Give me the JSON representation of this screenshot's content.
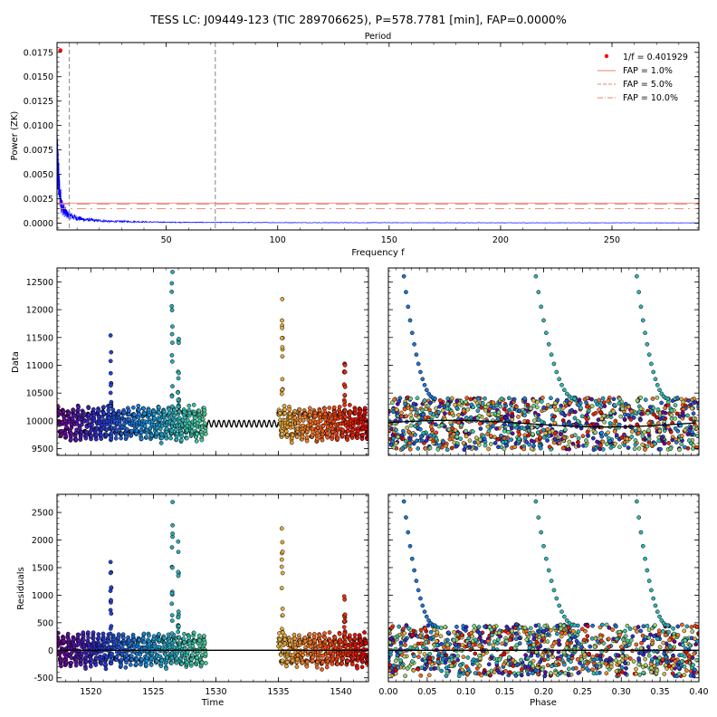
{
  "figure": {
    "title": "TESS LC: J09449-123 (TIC 289706625), P=578.7781 [min], FAP=0.0000%"
  },
  "chart_data": [
    {
      "id": "periodogram",
      "type": "line",
      "top_axis_label": "Period",
      "xlabel": "Frequency f",
      "ylabel": "Power (ZK)",
      "xlim": [
        1,
        289
      ],
      "ylim": [
        -0.0007,
        0.0185
      ],
      "xticks": [
        50,
        100,
        150,
        200,
        250
      ],
      "yticks": [
        0.0,
        0.0025,
        0.005,
        0.0075,
        0.01,
        0.0125,
        0.015,
        0.0175
      ],
      "ytick_labels": [
        "0.0000",
        "0.0025",
        "0.0050",
        "0.0075",
        "0.0100",
        "0.0125",
        "0.0150",
        "0.0175"
      ],
      "series": [
        {
          "name": "power",
          "color": "#0000ff",
          "x": [
            1.0,
            1.5,
            2.0,
            2.5,
            3.0,
            3.5,
            4.0,
            5.0,
            6.0,
            7.0,
            8.0,
            9.0,
            10.0,
            12.0,
            14.0,
            16.0,
            18.0,
            20.0,
            25.0,
            30.0,
            40.0,
            50.0,
            70.0,
            100.0,
            150.0,
            200.0,
            250.0,
            289.0
          ],
          "y": [
            0.0086,
            0.006,
            0.0042,
            0.0031,
            0.0024,
            0.0019,
            0.0016,
            0.0012,
            0.001,
            0.0009,
            0.0008,
            0.0007,
            0.0006,
            0.0005,
            0.0004,
            0.0004,
            0.0003,
            0.0003,
            0.0002,
            0.0002,
            0.00015,
            0.0001,
            8e-05,
            6e-05,
            5e-05,
            4e-05,
            4e-05,
            3e-05
          ]
        }
      ],
      "peak": {
        "x": 2.49,
        "y": 0.0177,
        "color": "#ff0000"
      },
      "vlines": [
        {
          "x": 6.5,
          "color": "#999999"
        },
        {
          "x": 72.0,
          "color": "#999999"
        }
      ],
      "fap_levels": [
        {
          "label": "FAP = 1.0%",
          "y": 0.00205,
          "style": "solid",
          "color": "#e8806e"
        },
        {
          "label": "FAP = 5.0%",
          "y": 0.00195,
          "style": "dashed",
          "color": "#e8806e"
        },
        {
          "label": "FAP = 10.0%",
          "y": 0.00175,
          "style": "dashdot",
          "color": "#e8806e"
        }
      ],
      "legend": {
        "placement": "top-right",
        "peak_label": "1/f = 0.401929"
      }
    },
    {
      "id": "data-vs-time",
      "type": "scatter",
      "xlabel": "",
      "ylabel": "Data",
      "xlim": [
        1517.3,
        1542.2
      ],
      "ylim": [
        9380,
        12750
      ],
      "yticks": [
        9500,
        10000,
        10500,
        11000,
        11500,
        12000,
        12500
      ],
      "segments": [
        [
          1517.3,
          1529.2
        ],
        [
          1535.0,
          1542.2
        ]
      ],
      "baseline": 9950,
      "amplitude": 270,
      "period_days": 0.401929,
      "gap_model": [
        1529.2,
        1535.0
      ],
      "flares": [
        {
          "x": 1521.6,
          "peak": 11850
        },
        {
          "x": 1526.5,
          "peak": 12700
        },
        {
          "x": 1527.0,
          "peak": 11950
        },
        {
          "x": 1535.3,
          "peak": 12680
        },
        {
          "x": 1540.3,
          "peak": 11050
        }
      ]
    },
    {
      "id": "data-vs-phase",
      "type": "scatter",
      "xlabel": "",
      "ylabel": "",
      "xlim": [
        0.0,
        0.4
      ],
      "ylim": [
        9380,
        12750
      ],
      "model_curve": {
        "baseline": 9950,
        "amplitude": 60
      }
    },
    {
      "id": "residuals-vs-time",
      "type": "scatter",
      "xlabel": "Time",
      "ylabel": "Residuals",
      "xlim": [
        1517.3,
        1542.2
      ],
      "ylim": [
        -570,
        2830
      ],
      "xticks": [
        1520,
        1525,
        1530,
        1535,
        1540
      ],
      "yticks": [
        -500,
        0,
        500,
        1000,
        1500,
        2000,
        2500
      ],
      "zero_line": 0
    },
    {
      "id": "residuals-vs-phase",
      "type": "scatter",
      "xlabel": "Phase",
      "ylabel": "",
      "xlim": [
        0.0,
        0.4
      ],
      "ylim": [
        -570,
        2830
      ],
      "xticks": [
        0.0,
        0.05,
        0.1,
        0.15,
        0.2,
        0.25,
        0.3,
        0.35,
        0.4
      ],
      "xtick_labels": [
        "0.00",
        "0.05",
        "0.10",
        "0.15",
        "0.20",
        "0.25",
        "0.30",
        "0.35",
        "0.40"
      ],
      "zero_line": 0
    }
  ]
}
